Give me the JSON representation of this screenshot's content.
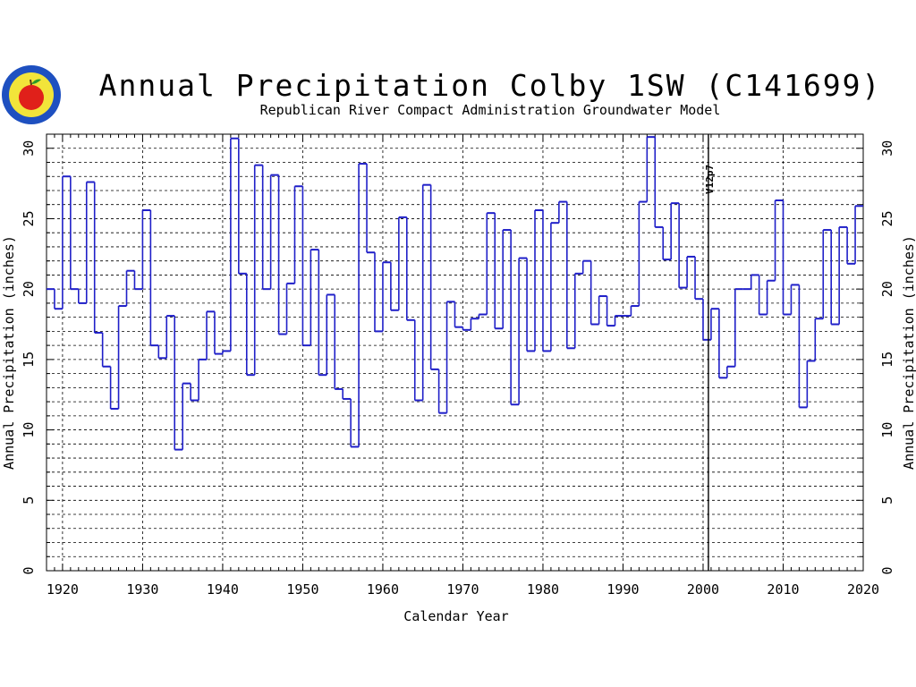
{
  "chart_data": {
    "type": "line",
    "style": "step",
    "title": "Annual Precipitation Colby 1SW (C141699)",
    "subtitle": "Republican River Compact Administration Groundwater Model",
    "xlabel": "Calendar Year",
    "ylabel": "Annual Precipitation (inches)",
    "xlim": [
      1918,
      2020
    ],
    "ylim": [
      0,
      31
    ],
    "xticks": [
      1920,
      1930,
      1940,
      1950,
      1960,
      1970,
      1980,
      1990,
      2000,
      2010,
      2020
    ],
    "yticks": [
      0,
      5,
      10,
      15,
      20,
      25,
      30
    ],
    "grid": true,
    "line_color": "#1f1fc8",
    "annotation": {
      "text": "V12p7",
      "x": 2001
    },
    "series": [
      {
        "x": [
          1918,
          1919,
          1920,
          1921,
          1922,
          1923,
          1924,
          1925,
          1926,
          1927,
          1928,
          1929,
          1930,
          1931,
          1932,
          1933,
          1934,
          1935,
          1936,
          1937,
          1938,
          1939,
          1940,
          1941,
          1942,
          1943,
          1944,
          1945,
          1946,
          1947,
          1948,
          1949,
          1950,
          1951,
          1952,
          1953,
          1954,
          1955,
          1956,
          1957,
          1958,
          1959,
          1960,
          1961,
          1962,
          1963,
          1964,
          1965,
          1966,
          1967,
          1968,
          1969,
          1970,
          1971,
          1972,
          1973,
          1974,
          1975,
          1976,
          1977,
          1978,
          1979,
          1980,
          1981,
          1982,
          1983,
          1984,
          1985,
          1986,
          1987,
          1988,
          1989,
          1990,
          1991,
          1992,
          1993,
          1994,
          1995,
          1996,
          1997,
          1998,
          1999,
          2000,
          2001,
          2002,
          2003,
          2004,
          2005,
          2006,
          2007,
          2008,
          2009,
          2010,
          2011,
          2012,
          2013,
          2014,
          2015,
          2016,
          2017,
          2018,
          2019
        ],
        "values": [
          20.0,
          18.6,
          28.0,
          20.0,
          19.0,
          27.6,
          16.9,
          14.5,
          11.5,
          18.8,
          21.3,
          20.0,
          25.6,
          16.0,
          15.1,
          18.1,
          8.6,
          13.3,
          12.1,
          15.0,
          18.4,
          15.4,
          15.6,
          30.7,
          21.1,
          13.9,
          28.8,
          20.0,
          28.1,
          16.8,
          20.4,
          27.3,
          16.0,
          22.8,
          13.9,
          19.6,
          12.9,
          12.2,
          8.8,
          28.9,
          22.6,
          17.0,
          21.9,
          18.5,
          25.1,
          17.8,
          12.1,
          27.4,
          14.3,
          11.2,
          19.1,
          17.3,
          17.1,
          17.9,
          18.2,
          25.4,
          17.2,
          24.2,
          11.8,
          22.2,
          15.6,
          25.6,
          15.6,
          24.7,
          26.2,
          15.8,
          21.1,
          22.0,
          17.5,
          19.5,
          17.4,
          18.1,
          18.1,
          18.8,
          26.2,
          30.8,
          24.4,
          22.1,
          26.1,
          20.1,
          22.3,
          19.3,
          16.4,
          18.6,
          13.7,
          14.5,
          20.0,
          20.0,
          21.0,
          18.2,
          20.6,
          26.3,
          18.2,
          20.3,
          11.6,
          14.9,
          17.9,
          24.2,
          17.5,
          24.4,
          21.8,
          25.9
        ]
      }
    ]
  }
}
